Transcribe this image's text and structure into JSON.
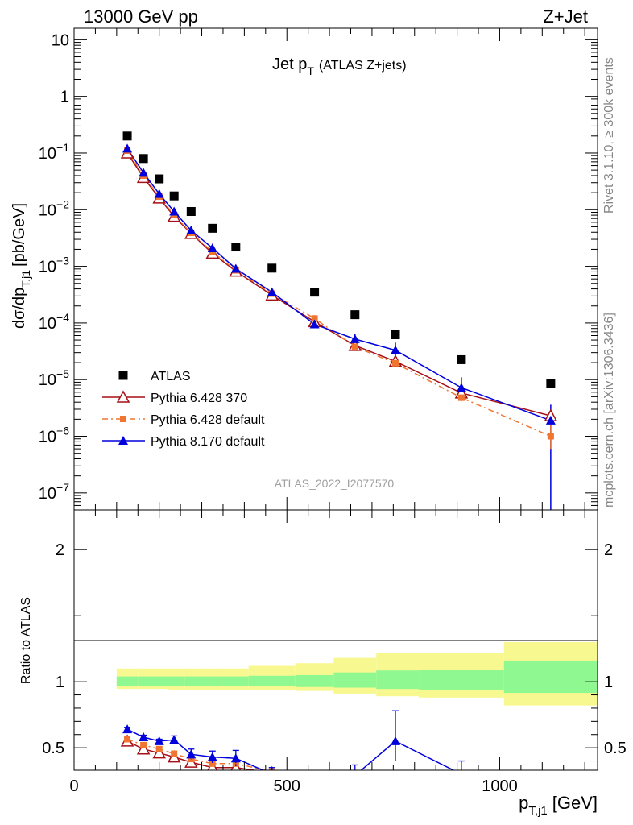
{
  "header": {
    "left": "13000 GeV pp",
    "right": "Z+Jet"
  },
  "side_text": {
    "top": "Rivet 3.1.10, ≥ 300k events",
    "bottom": "mcplots.cern.ch [arXiv:1306.3436]"
  },
  "chart_data": [
    {
      "type": "scatter",
      "panel": "main",
      "title_main": "Jet p",
      "title_sub": "T",
      "title_extra": "(ATLAS Z+jets)",
      "ylabel": "dσ/dp",
      "ylabel_sub": "T,j1",
      "ylabel_unit": "[pb/GeV]",
      "yscale": "log",
      "ylim": [
        5e-08,
        16
      ],
      "xlim": [
        0,
        1230
      ],
      "y_ticks": [
        {
          "value": 10,
          "label": "10"
        },
        {
          "value": 1,
          "label": "1"
        },
        {
          "value": 0.1,
          "base": "10",
          "exp": "−1"
        },
        {
          "value": 0.01,
          "base": "10",
          "exp": "−2"
        },
        {
          "value": 0.001,
          "base": "10",
          "exp": "−3"
        },
        {
          "value": 0.0001,
          "base": "10",
          "exp": "−4"
        },
        {
          "value": 1e-05,
          "base": "10",
          "exp": "−5"
        },
        {
          "value": 1e-06,
          "base": "10",
          "exp": "−6"
        },
        {
          "value": 1e-07,
          "base": "10",
          "exp": "−7"
        }
      ],
      "watermark": "ATLAS_2022_I2077570",
      "legend_position": "bottom-left",
      "series": [
        {
          "name": "ATLAS",
          "color": "#000000",
          "marker": "square",
          "x": [
            125,
            163,
            200,
            235,
            275,
            325,
            380,
            465,
            565,
            660,
            755,
            910,
            1120
          ],
          "y": [
            0.2,
            0.08,
            0.035,
            0.0175,
            0.0093,
            0.0047,
            0.0022,
            0.00093,
            0.00035,
            0.00014,
            6.2e-05,
            2.25e-05,
            8.5e-06
          ]
        },
        {
          "name": "Pythia 6.428 370",
          "color": "#a50f15",
          "marker": "open-triangle",
          "x": [
            125,
            163,
            200,
            235,
            275,
            325,
            380,
            465,
            565,
            660,
            755,
            910,
            1120
          ],
          "y": [
            0.1,
            0.037,
            0.016,
            0.0076,
            0.0038,
            0.0017,
            0.00082,
            0.00031,
            0.000105,
            4e-05,
            2.1e-05,
            5.8e-06,
            2.3e-06
          ]
        },
        {
          "name": "Pythia 6.428 default",
          "color": "#f07530",
          "marker": "square-small",
          "x": [
            125,
            163,
            200,
            235,
            275,
            325,
            380,
            465,
            565,
            660,
            755,
            910,
            1120
          ],
          "y": [
            0.11,
            0.04,
            0.017,
            0.008,
            0.0039,
            0.0018,
            0.00085,
            0.00033,
            0.00012,
            3.8e-05,
            1.95e-05,
            4.8e-06,
            1e-06
          ]
        },
        {
          "name": "Pythia 8.170 default",
          "color": "#0000dd",
          "marker": "triangle",
          "x": [
            125,
            163,
            200,
            235,
            275,
            325,
            380,
            465,
            565,
            660,
            755,
            910,
            1120
          ],
          "y": [
            0.12,
            0.045,
            0.019,
            0.0093,
            0.0043,
            0.0021,
            0.00091,
            0.00035,
            9.5e-05,
            5.2e-05,
            3.3e-05,
            7.2e-06,
            1.9e-06
          ]
        }
      ]
    },
    {
      "type": "line",
      "panel": "ratio",
      "ylabel": "Ratio to ATLAS",
      "ylim": [
        0.33,
        2.3
      ],
      "xlim": [
        0,
        1230
      ],
      "xlabel": "p",
      "xlabel_sub": "T,j1",
      "xlabel_unit": "[GeV]",
      "x_ticks": [
        0,
        500,
        1000
      ],
      "y_ticks": [
        0.5,
        1,
        2
      ],
      "uncertainty_band": {
        "edges": [
          100,
          150,
          180,
          220,
          260,
          300,
          350,
          410,
          520,
          610,
          710,
          810,
          1010,
          1230
        ],
        "inner_low": [
          0.965,
          0.965,
          0.965,
          0.965,
          0.965,
          0.965,
          0.965,
          0.965,
          0.96,
          0.955,
          0.945,
          0.94,
          0.915
        ],
        "inner_high": [
          1.04,
          1.04,
          1.04,
          1.04,
          1.04,
          1.04,
          1.04,
          1.045,
          1.05,
          1.07,
          1.085,
          1.09,
          1.16
        ],
        "outer_low": [
          0.945,
          0.945,
          0.945,
          0.94,
          0.94,
          0.94,
          0.94,
          0.94,
          0.93,
          0.91,
          0.89,
          0.88,
          0.82
        ],
        "outer_high": [
          1.1,
          1.1,
          1.1,
          1.1,
          1.1,
          1.1,
          1.1,
          1.12,
          1.14,
          1.18,
          1.22,
          1.22,
          1.3
        ],
        "inner_color": "#90f890",
        "outer_color": "#f8f890"
      },
      "series": [
        {
          "name": "Pythia 6.428 370",
          "color": "#a50f15",
          "x": [
            125,
            163,
            200,
            235,
            275,
            325,
            380,
            465
          ],
          "y": [
            0.55,
            0.49,
            0.46,
            0.43,
            0.39,
            0.35,
            0.35,
            0.31
          ]
        },
        {
          "name": "Pythia 6.428 default",
          "color": "#f07530",
          "x": [
            125,
            163,
            200,
            235,
            275,
            325,
            380,
            465
          ],
          "y": [
            0.565,
            0.52,
            0.49,
            0.455,
            0.415,
            0.38,
            0.38,
            0.32
          ]
        },
        {
          "name": "Pythia 8.170 default",
          "color": "#0000dd",
          "x": [
            125,
            163,
            200,
            235,
            275,
            325,
            380,
            465,
            565,
            660,
            755,
            910,
            1120
          ],
          "y": [
            0.64,
            0.58,
            0.55,
            0.56,
            0.45,
            0.43,
            0.42,
            0.3,
            0.27,
            0.29,
            0.55,
            0.3,
            0.22
          ],
          "err_low": [
            0.015,
            0.015,
            0.015,
            0.03,
            0.04,
            0.045,
            0.06,
            0.05,
            0.05,
            0.08,
            0.15,
            0.1,
            0.1
          ],
          "err_high": [
            0.015,
            0.015,
            0.015,
            0.03,
            0.04,
            0.045,
            0.06,
            0.05,
            0.05,
            0.08,
            0.23,
            0.1,
            0.1
          ]
        }
      ]
    }
  ]
}
